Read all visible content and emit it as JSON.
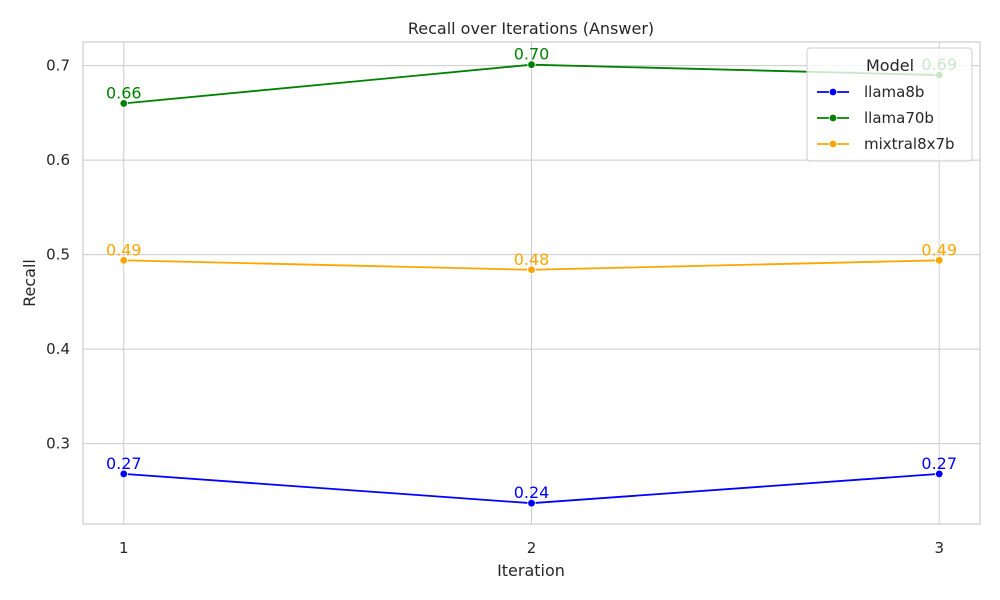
{
  "chart_data": {
    "type": "line",
    "title": "Recall over Iterations (Answer)",
    "xlabel": "Iteration",
    "ylabel": "Recall",
    "x": [
      1,
      2,
      3
    ],
    "x_tick_labels": [
      "1",
      "2",
      "3"
    ],
    "xlim": [
      0.9,
      3.1
    ],
    "ylim": [
      0.215,
      0.725
    ],
    "y_ticks": [
      0.3,
      0.4,
      0.5,
      0.6,
      0.7
    ],
    "y_tick_labels": [
      "0.3",
      "0.4",
      "0.5",
      "0.6",
      "0.7"
    ],
    "grid": true,
    "legend": {
      "title": "Model",
      "position": "top-right"
    },
    "series": [
      {
        "name": "llama8b",
        "color": "#0000ff",
        "values": [
          0.268,
          0.237,
          0.268
        ],
        "labels": [
          "0.27",
          "0.24",
          "0.27"
        ]
      },
      {
        "name": "llama70b",
        "color": "#008000",
        "values": [
          0.66,
          0.701,
          0.69
        ],
        "labels": [
          "0.66",
          "0.70",
          "0.69"
        ]
      },
      {
        "name": "mixtral8x7b",
        "color": "#ffa500",
        "values": [
          0.494,
          0.484,
          0.494
        ],
        "labels": [
          "0.49",
          "0.48",
          "0.49"
        ]
      }
    ]
  }
}
